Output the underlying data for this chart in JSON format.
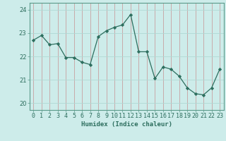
{
  "x": [
    0,
    1,
    2,
    3,
    4,
    5,
    6,
    7,
    8,
    9,
    10,
    11,
    12,
    13,
    14,
    15,
    16,
    17,
    18,
    19,
    20,
    21,
    22,
    23
  ],
  "y": [
    22.7,
    22.9,
    22.5,
    22.55,
    21.95,
    21.95,
    21.75,
    21.65,
    22.85,
    23.1,
    23.25,
    23.35,
    23.8,
    22.2,
    22.2,
    21.05,
    21.55,
    21.45,
    21.15,
    20.65,
    20.4,
    20.35,
    20.65,
    21.45
  ],
  "line_color": "#2d6e5e",
  "marker": "D",
  "marker_size": 2.2,
  "bg_color": "#cdecea",
  "grid_color": "#b0d8d4",
  "xlabel": "Humidex (Indice chaleur)",
  "ylim": [
    19.7,
    24.3
  ],
  "xlim": [
    -0.5,
    23.5
  ],
  "yticks": [
    20,
    21,
    22,
    23,
    24
  ],
  "xticks": [
    0,
    1,
    2,
    3,
    4,
    5,
    6,
    7,
    8,
    9,
    10,
    11,
    12,
    13,
    14,
    15,
    16,
    17,
    18,
    19,
    20,
    21,
    22,
    23
  ],
  "label_fontsize": 6.5,
  "tick_fontsize": 6.0,
  "spine_color": "#5a9a8a",
  "tick_color": "#2d6e5e"
}
